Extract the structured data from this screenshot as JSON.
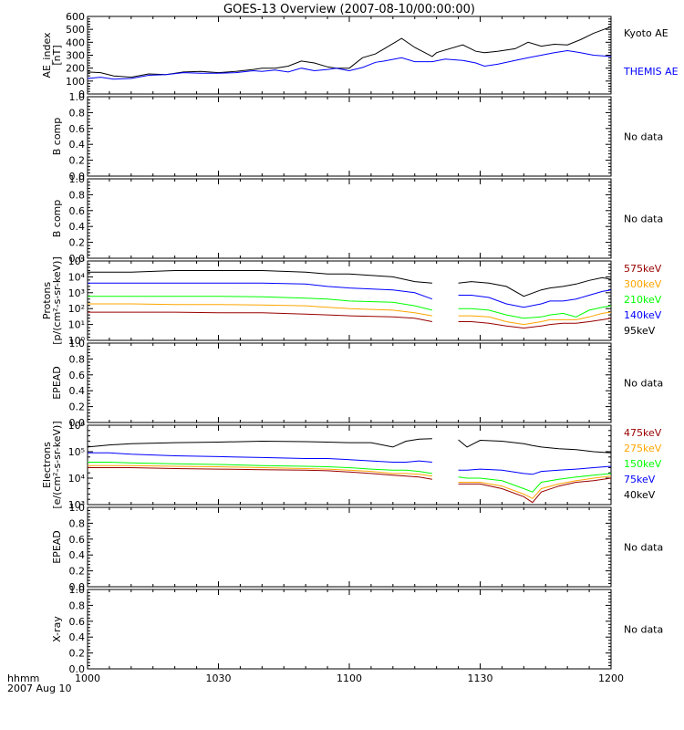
{
  "title": "GOES-13 Overview (2007-08-10/00:00:00)",
  "time_axis": {
    "unit_label": "hhmm",
    "date_label": "2007 Aug 10",
    "ticks": [
      {
        "label": "1000",
        "minute": 0
      },
      {
        "label": "1030",
        "minute": 30
      },
      {
        "label": "1100",
        "minute": 60
      },
      {
        "label": "1130",
        "minute": 90
      },
      {
        "label": "1200",
        "minute": 120
      }
    ],
    "range_minutes": [
      0,
      120
    ]
  },
  "no_data_text": "No data",
  "colors": {
    "black": "#000000",
    "blue": "#0000ff",
    "green": "#00ff00",
    "orange": "#ffa500",
    "darkred": "#990000"
  },
  "chart_data": [
    {
      "id": "ae",
      "type": "line",
      "ylabel_lines": [
        "AE_index",
        "[nT]"
      ],
      "ylim": [
        0,
        600
      ],
      "yscale": "linear",
      "yticks": [
        "0",
        "100",
        "200",
        "300",
        "400",
        "500",
        "600"
      ],
      "series": [
        {
          "name": "Kyoto AE",
          "color": "#000000",
          "x": [
            0,
            3,
            6,
            10,
            14,
            18,
            22,
            26,
            30,
            34,
            38,
            40,
            43,
            46,
            49,
            52,
            55,
            57,
            60,
            63,
            66,
            68,
            72,
            75,
            79,
            80,
            82,
            86,
            89,
            91,
            94,
            98,
            101,
            104,
            107,
            110,
            113,
            116,
            120
          ],
          "y": [
            170,
            165,
            140,
            130,
            155,
            150,
            170,
            175,
            165,
            175,
            190,
            200,
            200,
            215,
            255,
            240,
            210,
            200,
            200,
            280,
            310,
            350,
            430,
            360,
            290,
            320,
            340,
            380,
            330,
            320,
            330,
            350,
            400,
            370,
            385,
            380,
            420,
            470,
            520
          ]
        },
        {
          "name": "THEMIS AE",
          "color": "#0000ff",
          "x": [
            0,
            3,
            6,
            10,
            14,
            18,
            22,
            26,
            30,
            34,
            38,
            40,
            43,
            46,
            49,
            52,
            55,
            57,
            60,
            63,
            66,
            68,
            72,
            75,
            79,
            82,
            86,
            89,
            91,
            94,
            98,
            101,
            104,
            107,
            110,
            113,
            116,
            120
          ],
          "y": [
            120,
            130,
            115,
            120,
            145,
            150,
            165,
            160,
            160,
            165,
            180,
            175,
            185,
            170,
            200,
            180,
            190,
            200,
            180,
            205,
            245,
            255,
            280,
            250,
            250,
            270,
            260,
            240,
            215,
            230,
            260,
            280,
            300,
            320,
            335,
            320,
            300,
            290
          ]
        }
      ]
    },
    {
      "id": "bcomp-1",
      "type": "line",
      "ylabel_lines": [
        "B comp"
      ],
      "ylim": [
        0,
        1
      ],
      "yscale": "linear",
      "yticks": [
        "0.0",
        "0.2",
        "0.4",
        "0.6",
        "0.8",
        "1.0"
      ],
      "series": []
    },
    {
      "id": "bcomp-2",
      "type": "line",
      "ylabel_lines": [
        "B comp"
      ],
      "ylim": [
        0,
        1
      ],
      "yscale": "linear",
      "yticks": [
        "0.0",
        "0.2",
        "0.4",
        "0.6",
        "0.8",
        "1.0"
      ],
      "series": []
    },
    {
      "id": "protons",
      "type": "line",
      "ylabel_lines": [
        "Protons",
        "[p/(cm²-s-sr-keV)]"
      ],
      "ylim": [
        1,
        100000
      ],
      "yscale": "log",
      "yticks": [
        "10⁰",
        "10¹",
        "10²",
        "10³",
        "10⁴",
        "10⁵"
      ],
      "series": [
        {
          "name": "95keV",
          "color": "#000000",
          "x": [
            0,
            10,
            20,
            30,
            40,
            50,
            55,
            60,
            70,
            75,
            79,
            85,
            88,
            92,
            96,
            100,
            104,
            106,
            109,
            112,
            115,
            118,
            120
          ],
          "y": [
            20000,
            20000,
            25000,
            25000,
            25000,
            20000,
            15000,
            15000,
            10000,
            5000,
            4000,
            4000,
            5000,
            4000,
            2500,
            600,
            1500,
            2000,
            2500,
            3500,
            6000,
            9000,
            7000
          ]
        },
        {
          "name": "140keV",
          "color": "#0000ff",
          "x": [
            0,
            10,
            20,
            30,
            40,
            50,
            55,
            60,
            70,
            75,
            79,
            85,
            88,
            92,
            96,
            100,
            104,
            106,
            109,
            112,
            115,
            118,
            120
          ],
          "y": [
            4000,
            4000,
            4000,
            4000,
            4000,
            3500,
            2500,
            2000,
            1500,
            1000,
            400,
            700,
            700,
            500,
            200,
            120,
            200,
            300,
            300,
            400,
            700,
            1200,
            1500
          ]
        },
        {
          "name": "210keV",
          "color": "#00ff00",
          "x": [
            0,
            10,
            20,
            30,
            40,
            50,
            55,
            60,
            70,
            75,
            79,
            85,
            88,
            92,
            96,
            100,
            104,
            106,
            109,
            112,
            115,
            118,
            120
          ],
          "y": [
            600,
            600,
            600,
            600,
            550,
            450,
            400,
            300,
            250,
            150,
            80,
            100,
            100,
            80,
            40,
            25,
            30,
            40,
            50,
            30,
            80,
            120,
            150
          ]
        },
        {
          "name": "300keV",
          "color": "#ffa500",
          "x": [
            0,
            10,
            20,
            30,
            40,
            50,
            55,
            60,
            70,
            75,
            79,
            85,
            88,
            92,
            96,
            100,
            104,
            106,
            109,
            112,
            115,
            118,
            120
          ],
          "y": [
            200,
            200,
            180,
            180,
            170,
            150,
            120,
            100,
            80,
            55,
            35,
            35,
            35,
            30,
            15,
            10,
            15,
            20,
            20,
            20,
            30,
            50,
            60
          ]
        },
        {
          "name": "575keV",
          "color": "#990000",
          "x": [
            0,
            10,
            20,
            30,
            40,
            50,
            55,
            60,
            70,
            75,
            79,
            85,
            88,
            92,
            96,
            100,
            104,
            106,
            109,
            112,
            115,
            118,
            120
          ],
          "y": [
            60,
            60,
            60,
            55,
            55,
            45,
            40,
            35,
            30,
            25,
            15,
            15,
            15,
            12,
            8,
            6,
            8,
            10,
            12,
            12,
            15,
            20,
            25
          ]
        }
      ],
      "legend": [
        "575keV",
        "300keV",
        "210keV",
        "140keV",
        "95keV"
      ]
    },
    {
      "id": "epead-1",
      "type": "line",
      "ylabel_lines": [
        "EPEAD"
      ],
      "ylim": [
        0,
        1
      ],
      "yscale": "linear",
      "yticks": [
        "0.0",
        "0.2",
        "0.4",
        "0.6",
        "0.8",
        "1.0"
      ],
      "series": []
    },
    {
      "id": "electrons",
      "type": "line",
      "ylabel_lines": [
        "Electrons",
        "[e/(cm²-s-sr-keV)]"
      ],
      "ylim": [
        1000,
        1000000
      ],
      "yscale": "log",
      "yticks": [
        "10³",
        "10⁴",
        "10⁵",
        "10⁶"
      ],
      "series": [
        {
          "name": "40keV",
          "color": "#000000",
          "x": [
            0,
            5,
            10,
            20,
            30,
            40,
            50,
            55,
            60,
            65,
            70,
            73,
            76,
            79,
            85,
            87,
            90,
            95,
            100,
            102,
            104,
            108,
            112,
            116,
            120
          ],
          "y": [
            150000,
            180000,
            200000,
            220000,
            230000,
            250000,
            240000,
            230000,
            220000,
            220000,
            150000,
            250000,
            300000,
            310000,
            280000,
            150000,
            270000,
            250000,
            200000,
            170000,
            150000,
            130000,
            120000,
            100000,
            90000
          ]
        },
        {
          "name": "75keV",
          "color": "#0000ff",
          "x": [
            0,
            5,
            10,
            20,
            30,
            40,
            50,
            55,
            60,
            65,
            70,
            73,
            76,
            79,
            85,
            87,
            90,
            95,
            100,
            102,
            104,
            108,
            112,
            116,
            120
          ],
          "y": [
            90000,
            90000,
            80000,
            70000,
            65000,
            60000,
            55000,
            55000,
            50000,
            45000,
            40000,
            40000,
            45000,
            40000,
            20000,
            20000,
            22000,
            20000,
            15000,
            14000,
            18000,
            20000,
            22000,
            25000,
            28000
          ]
        },
        {
          "name": "150keV",
          "color": "#00ff00",
          "x": [
            0,
            5,
            10,
            20,
            30,
            40,
            50,
            55,
            60,
            65,
            70,
            73,
            76,
            79,
            85,
            87,
            90,
            95,
            100,
            102,
            104,
            108,
            112,
            116,
            120
          ],
          "y": [
            40000,
            40000,
            38000,
            35000,
            33000,
            30000,
            28000,
            27000,
            25000,
            22000,
            20000,
            20000,
            18000,
            15000,
            11000,
            10000,
            10000,
            8000,
            4000,
            3000,
            7000,
            9000,
            11000,
            13000,
            15000
          ]
        },
        {
          "name": "275keV",
          "color": "#ffa500",
          "x": [
            0,
            5,
            10,
            20,
            30,
            40,
            50,
            55,
            60,
            65,
            70,
            73,
            76,
            79,
            85,
            87,
            90,
            95,
            100,
            102,
            104,
            108,
            112,
            116,
            120
          ],
          "y": [
            30000,
            30000,
            30000,
            28000,
            27000,
            25000,
            23000,
            22000,
            20000,
            18000,
            15000,
            15000,
            14000,
            12000,
            7000,
            7000,
            7000,
            5000,
            2500,
            1700,
            4000,
            6000,
            8000,
            10000,
            12000
          ]
        },
        {
          "name": "475keV",
          "color": "#990000",
          "x": [
            0,
            5,
            10,
            20,
            30,
            40,
            50,
            55,
            60,
            65,
            70,
            73,
            76,
            79,
            85,
            87,
            90,
            95,
            100,
            102,
            104,
            108,
            112,
            116,
            120
          ],
          "y": [
            25000,
            25000,
            25000,
            23000,
            22000,
            21000,
            20000,
            19000,
            17000,
            15000,
            13000,
            12000,
            11000,
            9000,
            6000,
            6000,
            6000,
            4000,
            2000,
            1200,
            3000,
            5000,
            7000,
            8000,
            10000
          ]
        }
      ],
      "legend": [
        "475keV",
        "275keV",
        "150keV",
        "75keV",
        "40keV"
      ]
    },
    {
      "id": "epead-2",
      "type": "line",
      "ylabel_lines": [
        "EPEAD"
      ],
      "ylim": [
        0,
        1
      ],
      "yscale": "linear",
      "yticks": [
        "0.0",
        "0.2",
        "0.4",
        "0.6",
        "0.8",
        "1.0"
      ],
      "series": []
    },
    {
      "id": "xray",
      "type": "line",
      "ylabel_lines": [
        "X-ray"
      ],
      "ylim": [
        0,
        1
      ],
      "yscale": "linear",
      "yticks": [
        "0.0",
        "0.2",
        "0.4",
        "0.6",
        "0.8",
        "1.0"
      ],
      "series": []
    }
  ]
}
